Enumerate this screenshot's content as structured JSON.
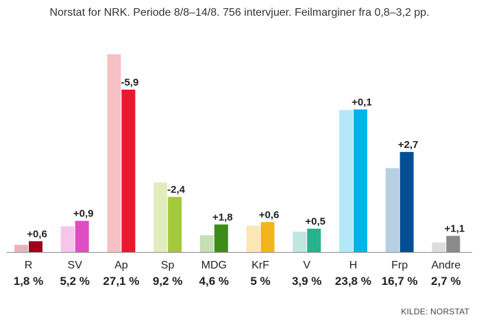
{
  "subtitle": "Norstat for NRK. Periode 8/8–14/8. 756 intervjuer. Feilmarginer fra 0,8–3,2 pp.",
  "source": "KILDE: NORSTAT",
  "chart_data": {
    "type": "bar",
    "categories": [
      "R",
      "SV",
      "Ap",
      "Sp",
      "MDG",
      "KrF",
      "V",
      "H",
      "Frp",
      "Andre"
    ],
    "current_labels": [
      "1,8 %",
      "5,2 %",
      "27,1 %",
      "9,2 %",
      "4,6 %",
      "5 %",
      "3,9 %",
      "23,8 %",
      "16,7 %",
      "2,7 %"
    ],
    "change_labels": [
      "+0,6",
      "+0,9",
      "-5,9",
      "-2,4",
      "+1,8",
      "+0,6",
      "+0,5",
      "+0,1",
      "+2,7",
      "+1,1"
    ],
    "series": [
      {
        "values": [
          1.2,
          4.3,
          33.0,
          11.6,
          2.8,
          4.4,
          3.4,
          23.7,
          14.0,
          1.6
        ],
        "colors": [
          "#e8b4bb",
          "#f6c6ea",
          "#f7c0c4",
          "#e2edbd",
          "#c7dfb4",
          "#fde6b6",
          "#bfe6df",
          "#b3e8f9",
          "#b6cfe3",
          "#dddddd"
        ]
      },
      {
        "values": [
          1.8,
          5.2,
          27.1,
          9.2,
          4.6,
          5.0,
          3.9,
          23.8,
          16.7,
          2.7
        ],
        "colors": [
          "#a0001a",
          "#dd4ec0",
          "#e8192c",
          "#a4c93c",
          "#3b8d17",
          "#f2b51c",
          "#25b28c",
          "#00b4eb",
          "#004f94",
          "#8a8a8a"
        ]
      }
    ],
    "ylim": [
      0,
      34
    ]
  }
}
